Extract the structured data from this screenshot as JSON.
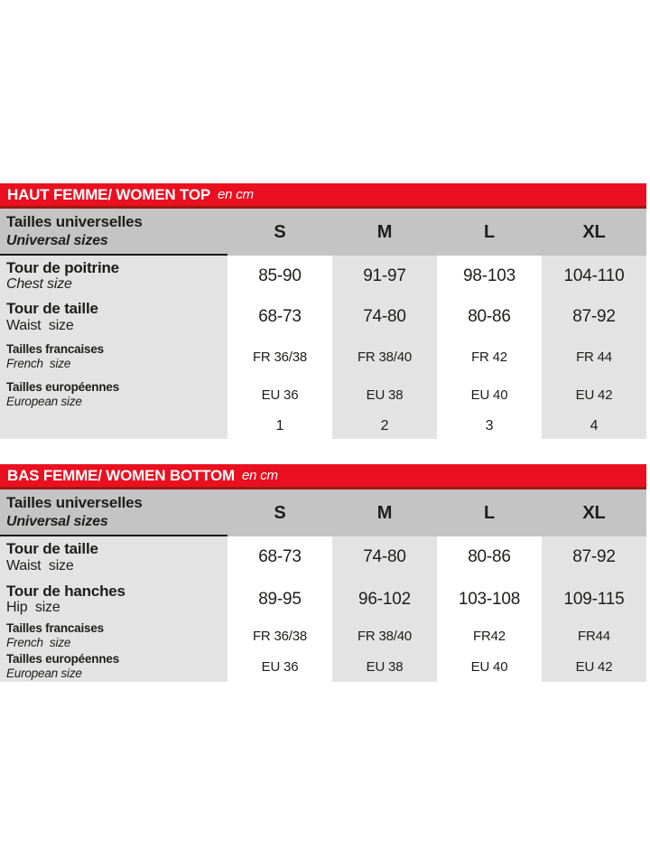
{
  "colors": {
    "title_bar_red": "#ea1020",
    "title_bar_border_dark_red": "#9e1a14",
    "header_row_gray": "#c4c4c4",
    "cell_gray": "#e3e3e3",
    "text": "#1d1d1b",
    "title_text": "#ffffff"
  },
  "tables": [
    {
      "title": "HAUT FEMME/ WOMEN TOP",
      "unit": "en cm",
      "header": {
        "label_fr": "Tailles universelles",
        "label_en": "Universal sizes",
        "sizes": [
          "S",
          "M",
          "L",
          "XL"
        ]
      },
      "rows": [
        {
          "label_fr": "Tour de poitrine",
          "label_en": "Chest size",
          "values": [
            "85-90",
            "91-97",
            "98-103",
            "104-110"
          ]
        },
        {
          "label_fr": "Tour de taille",
          "label_en": "Waist  size",
          "values": [
            "68-73",
            "74-80",
            "80-86",
            "87-92"
          ]
        },
        {
          "label_fr": "Tailles francaises",
          "label_en": "French  size",
          "values": [
            "FR 36/38",
            "FR 38/40",
            "FR 42",
            "FR 44"
          ]
        },
        {
          "label_fr": "Tailles européennes",
          "label_en": "European size",
          "values": [
            "EU 36",
            "EU 38",
            "EU 40",
            "EU 42"
          ]
        },
        {
          "label_fr": "",
          "label_en": "",
          "values": [
            "1",
            "2",
            "3",
            "4"
          ]
        }
      ]
    },
    {
      "title": "BAS FEMME/ WOMEN BOTTOM",
      "unit": "en cm",
      "header": {
        "label_fr": "Tailles universelles",
        "label_en": "Universal sizes",
        "sizes": [
          "S",
          "M",
          "L",
          "XL"
        ]
      },
      "rows": [
        {
          "label_fr": "Tour de taille",
          "label_en": "Waist  size",
          "values": [
            "68-73",
            "74-80",
            "80-86",
            "87-92"
          ]
        },
        {
          "label_fr": "Tour de hanches",
          "label_en": "Hip  size",
          "values": [
            "89-95",
            "96-102",
            "103-108",
            "109-115"
          ]
        },
        {
          "label_fr": "Tailles francaises",
          "label_en": "French  size",
          "values": [
            "FR 36/38",
            "FR 38/40",
            "FR42",
            "FR44"
          ]
        },
        {
          "label_fr": "Tailles européennes",
          "label_en": "European size",
          "values": [
            "EU 36",
            "EU 38",
            "EU 40",
            "EU 42"
          ]
        }
      ]
    }
  ]
}
